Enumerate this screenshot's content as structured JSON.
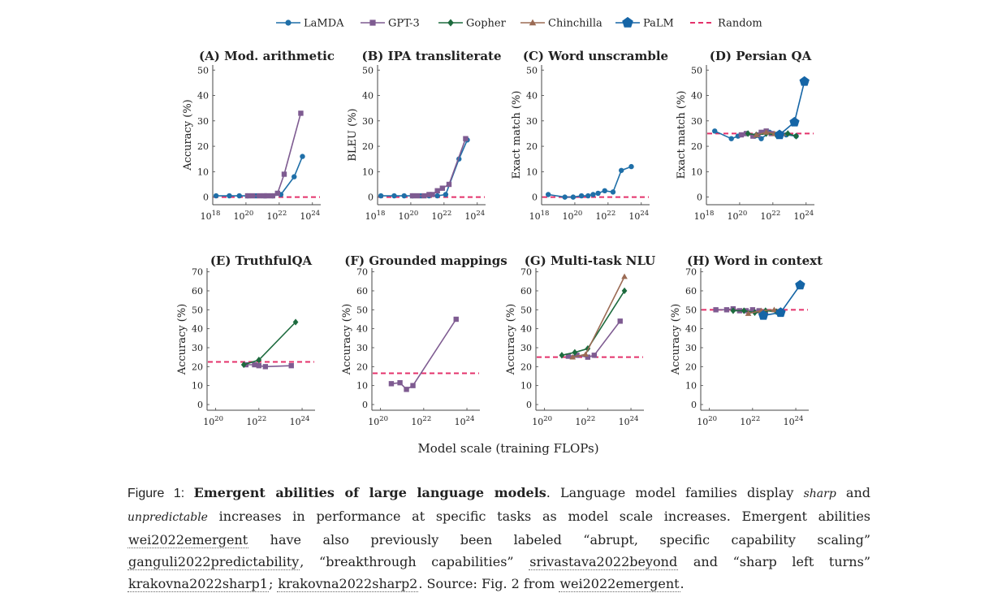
{
  "legend": [
    {
      "name": "LaMDA",
      "color": "#1f6fa8",
      "marker": "circle",
      "dash": false
    },
    {
      "name": "GPT-3",
      "color": "#7e5b91",
      "marker": "square",
      "dash": false
    },
    {
      "name": "Gopher",
      "color": "#1d6b3e",
      "marker": "diamond",
      "dash": false
    },
    {
      "name": "Chinchilla",
      "color": "#9b6b54",
      "marker": "triangle",
      "dash": false
    },
    {
      "name": "PaLM",
      "color": "#1565a6",
      "marker": "pentagon",
      "dash": false
    },
    {
      "name": "Random",
      "color": "#e4326b",
      "marker": "none",
      "dash": true
    }
  ],
  "x_axis_label": "Model scale (training FLOPs)",
  "chart_data": [
    {
      "type": "line",
      "title": "(A) Mod. arithmetic",
      "ylabel": "Accuracy (%)",
      "xscale": "log",
      "xlim": [
        18,
        24.5
      ],
      "xticks": [
        "10^18",
        "10^20",
        "10^22",
        "10^24"
      ],
      "ylim": [
        -3,
        52
      ],
      "yticks": [
        0,
        10,
        20,
        30,
        40,
        50
      ],
      "random": 0,
      "series": [
        {
          "name": "LaMDA",
          "log10_x": [
            18.2,
            19.0,
            19.6,
            20.1,
            20.6,
            21.1,
            21.6,
            22.1,
            22.9,
            23.4
          ],
          "y": [
            0.5,
            0.5,
            0.5,
            0.5,
            0.5,
            0.5,
            0.5,
            1.0,
            8.0,
            16.0
          ]
        },
        {
          "name": "GPT-3",
          "log10_x": [
            20.1,
            20.4,
            20.8,
            21.1,
            21.3,
            21.6,
            21.9,
            22.3,
            23.3
          ],
          "y": [
            0.5,
            0.5,
            0.5,
            0.5,
            0.5,
            0.5,
            1.5,
            9.0,
            33.0
          ]
        }
      ]
    },
    {
      "type": "line",
      "title": "(B) IPA transliterate",
      "ylabel": "BLEU (%)",
      "xscale": "log",
      "xlim": [
        18,
        24.5
      ],
      "xticks": [
        "10^18",
        "10^20",
        "10^22",
        "10^24"
      ],
      "ylim": [
        -3,
        52
      ],
      "yticks": [
        0,
        10,
        20,
        30,
        40,
        50
      ],
      "random": 0,
      "series": [
        {
          "name": "LaMDA",
          "log10_x": [
            18.2,
            19.0,
            19.6,
            20.1,
            20.6,
            21.1,
            21.6,
            22.1,
            22.9,
            23.4
          ],
          "y": [
            0.5,
            0.5,
            0.5,
            0.5,
            0.5,
            0.5,
            0.5,
            1.0,
            15.0,
            22.5
          ]
        },
        {
          "name": "GPT-3",
          "log10_x": [
            20.1,
            20.4,
            20.8,
            21.1,
            21.3,
            21.6,
            21.9,
            22.3,
            23.3
          ],
          "y": [
            0.5,
            0.5,
            0.5,
            1.0,
            1.0,
            2.5,
            3.5,
            5.0,
            23.0
          ]
        }
      ]
    },
    {
      "type": "line",
      "title": "(C) Word unscramble",
      "ylabel": "Exact match (%)",
      "xscale": "log",
      "xlim": [
        18,
        24.5
      ],
      "xticks": [
        "10^18",
        "10^20",
        "10^22",
        "10^24"
      ],
      "ylim": [
        -3,
        52
      ],
      "yticks": [
        0,
        10,
        20,
        30,
        40,
        50
      ],
      "random": 0,
      "series": [
        {
          "name": "LaMDA",
          "log10_x": [
            18.4,
            19.4,
            19.9,
            20.4,
            20.8,
            21.1,
            21.4,
            21.8,
            22.3,
            22.8,
            23.4
          ],
          "y": [
            1.0,
            0.0,
            0.0,
            0.5,
            0.5,
            1.0,
            1.5,
            2.5,
            2.0,
            10.5,
            12.0
          ]
        }
      ]
    },
    {
      "type": "line",
      "title": "(D) Persian QA",
      "ylabel": "Exact match (%)",
      "xscale": "log",
      "xlim": [
        18,
        24.5
      ],
      "xticks": [
        "10^18",
        "10^20",
        "10^22",
        "10^24"
      ],
      "ylim": [
        -3,
        52
      ],
      "yticks": [
        0,
        10,
        20,
        30,
        40,
        50
      ],
      "random": 25,
      "series": [
        {
          "name": "LaMDA",
          "log10_x": [
            18.5,
            19.5,
            19.9,
            20.4,
            20.9,
            21.3,
            21.8,
            22.3,
            22.8,
            23.4
          ],
          "y": [
            26.0,
            23.0,
            24.0,
            25.0,
            24.0,
            23.0,
            25.5,
            24.5,
            24.5,
            24.0
          ]
        },
        {
          "name": "GPT-3",
          "log10_x": [
            20.1,
            20.4,
            20.8,
            21.1,
            21.3,
            21.6,
            21.9,
            22.3
          ],
          "y": [
            24.5,
            25.0,
            24.0,
            24.5,
            25.5,
            26.0,
            25.0,
            24.5
          ]
        },
        {
          "name": "Gopher",
          "log10_x": [
            20.5,
            21.0,
            21.6,
            22.2,
            22.9,
            23.4
          ],
          "y": [
            25.0,
            24.5,
            25.0,
            24.5,
            25.0,
            24.0
          ]
        },
        {
          "name": "Chinchilla",
          "log10_x": [
            21.0,
            21.6,
            22.1,
            22.6
          ],
          "y": [
            24.5,
            25.5,
            25.0,
            25.0
          ]
        },
        {
          "name": "PaLM",
          "log10_x": [
            22.4,
            23.3,
            23.9
          ],
          "y": [
            24.5,
            29.5,
            45.5
          ]
        }
      ]
    },
    {
      "type": "line",
      "title": "(E) TruthfulQA",
      "ylabel": "Accuracy (%)",
      "xscale": "log",
      "xlim": [
        19.6,
        24.6
      ],
      "xticks": [
        "10^20",
        "10^22",
        "10^24"
      ],
      "ylim": [
        -3,
        72
      ],
      "yticks": [
        0,
        10,
        20,
        30,
        40,
        50,
        60,
        70
      ],
      "random": 22.5,
      "series": [
        {
          "name": "GPT-3",
          "log10_x": [
            21.4,
            21.8,
            22.0,
            22.3,
            23.5
          ],
          "y": [
            21.0,
            21.0,
            20.5,
            20.0,
            20.5
          ]
        },
        {
          "name": "Gopher",
          "log10_x": [
            21.3,
            22.0,
            23.7
          ],
          "y": [
            21.0,
            23.5,
            43.5
          ]
        }
      ]
    },
    {
      "type": "line",
      "title": "(F) Grounded mappings",
      "ylabel": "Accuracy (%)",
      "xscale": "log",
      "xlim": [
        19.6,
        24.6
      ],
      "xticks": [
        "10^20",
        "10^22",
        "10^24"
      ],
      "ylim": [
        -3,
        72
      ],
      "yticks": [
        0,
        10,
        20,
        30,
        40,
        50,
        60,
        70
      ],
      "random": 16.5,
      "series": [
        {
          "name": "GPT-3",
          "log10_x": [
            20.5,
            20.9,
            21.2,
            21.5,
            23.5
          ],
          "y": [
            11.0,
            11.5,
            8.0,
            10.0,
            45.0
          ]
        }
      ]
    },
    {
      "type": "line",
      "title": "(G) Multi-task NLU",
      "ylabel": "Accuracy (%)",
      "xscale": "log",
      "xlim": [
        19.6,
        24.6
      ],
      "xticks": [
        "10^20",
        "10^22",
        "10^24"
      ],
      "ylim": [
        -3,
        72
      ],
      "yticks": [
        0,
        10,
        20,
        30,
        40,
        50,
        60,
        70
      ],
      "random": 25,
      "series": [
        {
          "name": "GPT-3",
          "log10_x": [
            21.1,
            21.5,
            22.0,
            22.3,
            23.5
          ],
          "y": [
            25.5,
            26.0,
            25.0,
            26.0,
            44.0
          ]
        },
        {
          "name": "Gopher",
          "log10_x": [
            20.8,
            21.4,
            22.0,
            23.7
          ],
          "y": [
            26.0,
            27.5,
            29.5,
            60.0
          ]
        },
        {
          "name": "Chinchilla",
          "log10_x": [
            21.3,
            21.9,
            23.7
          ],
          "y": [
            25.0,
            26.5,
            67.5
          ]
        }
      ]
    },
    {
      "type": "line",
      "title": "(H) Word in context",
      "ylabel": "Accuracy (%)",
      "xscale": "log",
      "xlim": [
        19.6,
        24.6
      ],
      "xticks": [
        "10^20",
        "10^22",
        "10^24"
      ],
      "ylim": [
        -3,
        72
      ],
      "yticks": [
        0,
        10,
        20,
        30,
        40,
        50,
        60,
        70
      ],
      "random": 50,
      "series": [
        {
          "name": "GPT-3",
          "log10_x": [
            20.3,
            20.8,
            21.1,
            21.4,
            21.7,
            22.0,
            22.3,
            22.6
          ],
          "y": [
            50.0,
            50.0,
            50.5,
            49.5,
            49.5,
            50.0,
            49.5,
            49.0
          ]
        },
        {
          "name": "Gopher",
          "log10_x": [
            21.1,
            21.6,
            22.1,
            22.6,
            23.1
          ],
          "y": [
            49.5,
            49.5,
            48.5,
            49.5,
            49.0
          ]
        },
        {
          "name": "Chinchilla",
          "log10_x": [
            21.8,
            22.4,
            23.0
          ],
          "y": [
            48.0,
            49.5,
            50.0
          ]
        },
        {
          "name": "PaLM",
          "log10_x": [
            22.5,
            23.3,
            24.2
          ],
          "y": [
            47.0,
            48.5,
            63.0
          ]
        }
      ]
    }
  ],
  "caption": {
    "label": "Figure 1: ",
    "title": "Emergent abilities of large language models",
    "p1": ". Language model families display ",
    "em1": "sharp",
    "p2": " and ",
    "em2": "unpredictable",
    "p3": " increases in performance at specific tasks as model scale increases. Emergent abilities ",
    "cite1": "wei2022emergent",
    "p4": " have also previously been labeled “abrupt, specific capability scaling” ",
    "cite2": "ganguli2022predictability",
    "p5": ", “breakthrough capabilities” ",
    "cite3": "srivastava2022beyond",
    "p6": " and “sharp left turns” ",
    "cite4": "krakovna2022sharp1",
    "p7": "; ",
    "cite5": "krakovna2022sharp2",
    "p8": ". Source: Fig. 2 from ",
    "cite6": "wei2022emergent",
    "p9": "."
  }
}
